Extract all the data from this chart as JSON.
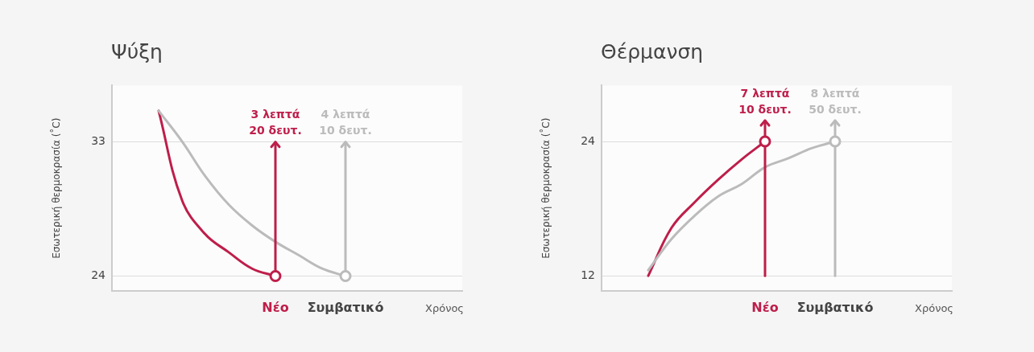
{
  "chart_data": [
    {
      "type": "line",
      "title": "Ψύξη",
      "ylabel": "Εσωτερική θερμοκρασία (˚C)",
      "xlabel": "Χρόνος",
      "categories": [
        null,
        null,
        null,
        null,
        null,
        null,
        null,
        "Νέο",
        null,
        null,
        "Συμβατικό",
        null,
        null,
        null,
        null,
        null
      ],
      "series": [
        {
          "color": "#be1e4a",
          "values": [
            null,
            null,
            35.1,
            29.1,
            26.8,
            25.6,
            24.5,
            24,
            null,
            null,
            null,
            null,
            null,
            null,
            null,
            null
          ]
        },
        {
          "color": "#bbbbbb",
          "values": [
            null,
            null,
            35.1,
            33.05,
            30.7,
            28.8,
            27.4,
            26.3,
            25.4,
            24.5,
            24,
            null,
            null,
            null,
            null,
            null
          ]
        }
      ],
      "annotations": [
        {
          "text": "3 λεπτά\n20 δευτ.",
          "x": "Νέο",
          "y": 24
        },
        {
          "text": "4 λεπτά\n10 δευτ.",
          "x": "Συμβατικό",
          "y": 24
        }
      ],
      "ylim": [
        23,
        36.8
      ],
      "yticks": [
        24,
        33
      ],
      "grid": "y",
      "legend": false
    },
    {
      "type": "line",
      "title": "Θέρμανση",
      "ylabel": "Εσωτερική θερμοκρασία (˚C)",
      "xlabel": "Χρόνος",
      "categories": [
        null,
        null,
        null,
        null,
        null,
        null,
        null,
        "Νέο",
        null,
        null,
        "Συμβατικό",
        null,
        null,
        null,
        null,
        null
      ],
      "series": [
        {
          "color": "#be1e4a",
          "values": [
            null,
            null,
            12,
            16.3,
            18.6,
            20.6,
            22.4,
            24,
            null,
            null,
            null,
            null,
            null,
            null,
            null,
            null
          ]
        },
        {
          "color": "#bbbbbb",
          "values": [
            null,
            null,
            12.5,
            15.3,
            17.4,
            19.1,
            20.2,
            21.7,
            22.5,
            23.4,
            24,
            null,
            null,
            null,
            null,
            null
          ]
        }
      ],
      "annotations": [
        {
          "text": "7 λεπτά\n10 δευτ.",
          "x": "Νέο",
          "y": 24
        },
        {
          "text": "8 λεπτά\n50 δευτ.",
          "x": "Συμβατικό",
          "y": 24
        }
      ],
      "ylim": [
        10.65,
        29
      ],
      "yticks": [
        12,
        24
      ],
      "grid": "y",
      "legend": false
    }
  ]
}
